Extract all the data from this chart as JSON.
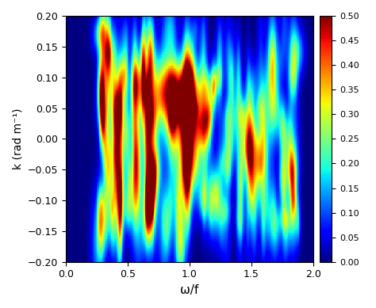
{
  "xlim": [
    0,
    2
  ],
  "ylim": [
    -0.2,
    0.2
  ],
  "xlabel": "ω/f",
  "ylabel": "k (rad m⁻¹)",
  "colorbar_min": 0,
  "colorbar_max": 0.5,
  "colorbar_ticks": [
    0,
    0.05,
    0.1,
    0.15,
    0.2,
    0.25,
    0.3,
    0.35,
    0.4,
    0.45,
    0.5
  ],
  "xticks": [
    0,
    0.5,
    1.0,
    1.5,
    2.0
  ],
  "yticks": [
    -0.2,
    -0.15,
    -0.1,
    -0.05,
    0,
    0.05,
    0.1,
    0.15,
    0.2
  ],
  "seed": 42
}
